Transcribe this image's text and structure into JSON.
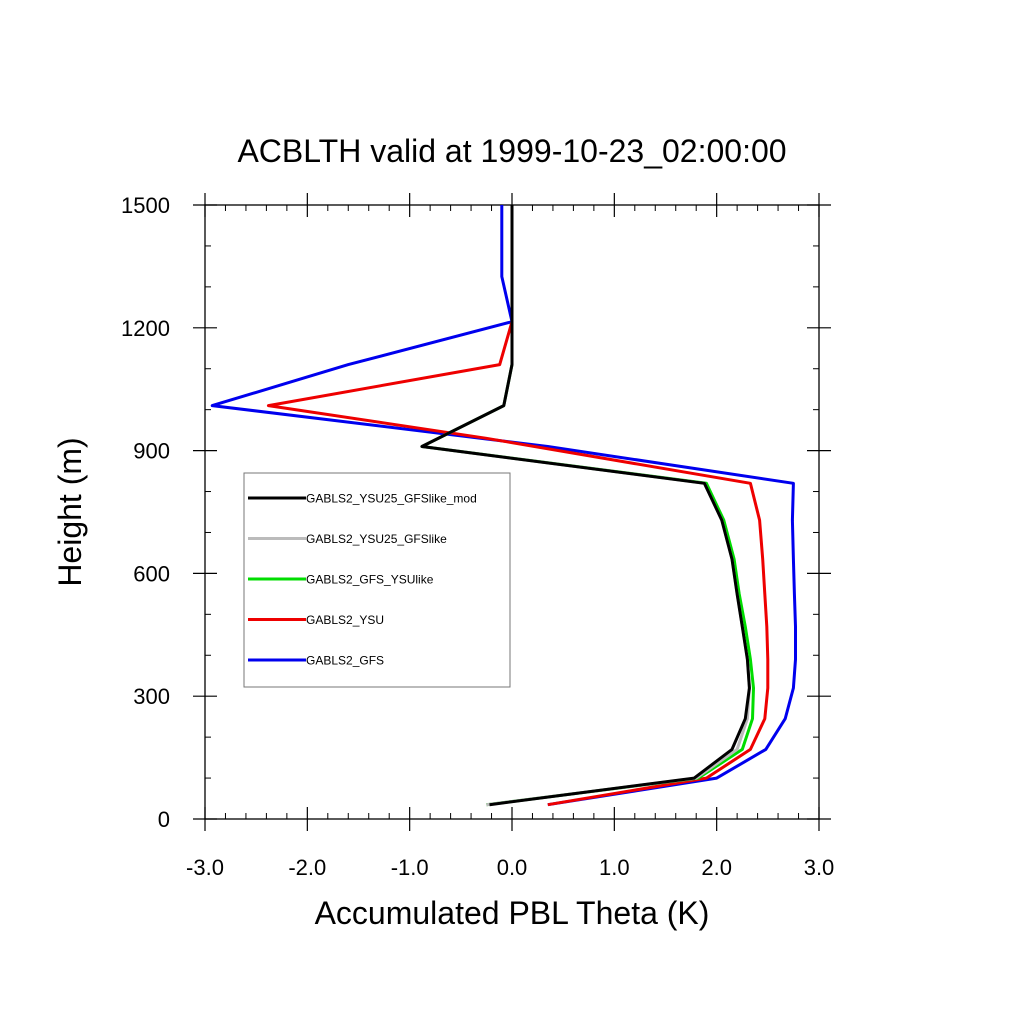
{
  "chart_data": {
    "type": "line",
    "title": "ACBLTH valid at 1999-10-23_02:00:00",
    "xlabel": "Accumulated PBL Theta (K)",
    "ylabel": "Height (m)",
    "xlim": [
      -3.0,
      3.0
    ],
    "ylim": [
      0,
      1500
    ],
    "x_ticks": [
      -3.0,
      -2.0,
      -1.0,
      0.0,
      1.0,
      2.0,
      3.0
    ],
    "x_tick_labels": [
      "-3.0",
      "-2.0",
      "-1.0",
      "0.0",
      "1.0",
      "2.0",
      "3.0"
    ],
    "y_ticks": [
      0,
      300,
      600,
      900,
      1200,
      1500
    ],
    "y_tick_labels": [
      "0",
      "300",
      "600",
      "900",
      "1200",
      "1500"
    ],
    "legend_position": "middle-left",
    "series": [
      {
        "name": "GABLS2_YSU25_GFSlike_mod",
        "color": "#000000",
        "points": [
          [
            -0.22,
            35
          ],
          [
            1.78,
            100
          ],
          [
            2.15,
            170
          ],
          [
            2.28,
            245
          ],
          [
            2.32,
            320
          ],
          [
            2.3,
            390
          ],
          [
            2.25,
            470
          ],
          [
            2.2,
            550
          ],
          [
            2.15,
            635
          ],
          [
            2.05,
            730
          ],
          [
            1.88,
            820
          ],
          [
            -0.88,
            910
          ],
          [
            -0.08,
            1010
          ],
          [
            0.0,
            1110
          ],
          [
            0.0,
            1215
          ],
          [
            0.0,
            1500
          ]
        ]
      },
      {
        "name": "GABLS2_YSU25_GFSlike",
        "color": "#bbbbbb",
        "points": [
          [
            -0.25,
            35
          ],
          [
            1.8,
            100
          ],
          [
            2.2,
            170
          ],
          [
            2.3,
            245
          ],
          [
            2.32,
            320
          ],
          [
            2.3,
            390
          ],
          [
            2.25,
            470
          ],
          [
            2.2,
            550
          ],
          [
            2.15,
            635
          ],
          [
            2.05,
            730
          ],
          [
            1.88,
            820
          ],
          [
            -0.88,
            910
          ],
          [
            -0.08,
            1010
          ],
          [
            0.0,
            1110
          ],
          [
            0.0,
            1215
          ],
          [
            0.0,
            1500
          ]
        ]
      },
      {
        "name": "GABLS2_GFS_YSUlike",
        "color": "#00dd00",
        "points": [
          [
            -0.25,
            35
          ],
          [
            1.82,
            100
          ],
          [
            2.25,
            170
          ],
          [
            2.35,
            245
          ],
          [
            2.36,
            320
          ],
          [
            2.33,
            390
          ],
          [
            2.28,
            470
          ],
          [
            2.22,
            550
          ],
          [
            2.17,
            635
          ],
          [
            2.07,
            730
          ],
          [
            1.9,
            820
          ],
          [
            -0.88,
            910
          ],
          [
            -0.08,
            1010
          ],
          [
            0.0,
            1110
          ],
          [
            0.0,
            1215
          ],
          [
            0.0,
            1500
          ]
        ]
      },
      {
        "name": "GABLS2_YSU",
        "color": "#ee0000",
        "points": [
          [
            0.35,
            35
          ],
          [
            1.9,
            100
          ],
          [
            2.33,
            170
          ],
          [
            2.47,
            245
          ],
          [
            2.5,
            320
          ],
          [
            2.5,
            390
          ],
          [
            2.49,
            470
          ],
          [
            2.47,
            550
          ],
          [
            2.45,
            635
          ],
          [
            2.42,
            730
          ],
          [
            2.33,
            820
          ],
          [
            -0.25,
            930
          ],
          [
            -2.38,
            1010
          ],
          [
            -0.12,
            1110
          ],
          [
            0.0,
            1215
          ],
          [
            0.0,
            1500
          ]
        ]
      },
      {
        "name": "GABLS2_GFS",
        "color": "#0000ee",
        "points": [
          [
            0.35,
            35
          ],
          [
            2.0,
            100
          ],
          [
            2.48,
            170
          ],
          [
            2.67,
            245
          ],
          [
            2.75,
            320
          ],
          [
            2.77,
            390
          ],
          [
            2.77,
            470
          ],
          [
            2.76,
            550
          ],
          [
            2.75,
            635
          ],
          [
            2.74,
            730
          ],
          [
            2.75,
            820
          ],
          [
            0.35,
            910
          ],
          [
            -2.93,
            1010
          ],
          [
            -1.6,
            1110
          ],
          [
            0.0,
            1215
          ],
          [
            -0.1,
            1325
          ],
          [
            -0.1,
            1500
          ]
        ]
      }
    ]
  }
}
